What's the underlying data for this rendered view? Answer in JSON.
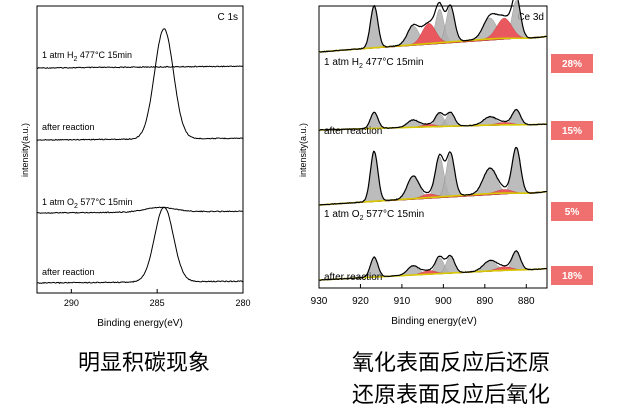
{
  "chart_data": [
    {
      "type": "line",
      "panel_label": "C 1s",
      "xlabel": "Binding energy(eV)",
      "ylabel": "intensity(a.u.)",
      "xlim": [
        292,
        280
      ],
      "xticks": [
        290,
        285,
        280
      ],
      "series": [
        {
          "label": "1 atm H₂ 477°C 15min",
          "peak": null
        },
        {
          "label": "after reaction",
          "peak": {
            "center": 284.6,
            "height": 1.0
          }
        },
        {
          "label": "1 atm O₂ 577°C 15min",
          "peak": {
            "center": 284.8,
            "height": 0.06
          }
        },
        {
          "label": "after reaction",
          "peak": {
            "center": 284.6,
            "height": 0.85
          }
        }
      ]
    },
    {
      "type": "line",
      "panel_label": "Ce 3d",
      "xlabel": "Binding energy(eV)",
      "ylabel": "intensity(a.u.)",
      "xlim": [
        930,
        875
      ],
      "xticks": [
        930,
        920,
        910,
        900,
        890,
        880
      ],
      "series": [
        {
          "label": "1 atm H₂ 477°C 15min",
          "badge": "28%"
        },
        {
          "label": "after reaction",
          "badge": "15%"
        },
        {
          "label": "1 atm O₂ 577°C 15min",
          "badge": "5%"
        },
        {
          "label": "after reaction",
          "badge": "18%"
        }
      ],
      "colors": {
        "ce4_fill": "#b0b0b0",
        "ce3_fill": "#e8585e",
        "badge": "#f07070",
        "fit": "#d8c800"
      }
    }
  ],
  "captions": {
    "left": "明显积碳现象",
    "right_line1": "氧化表面反应后还原",
    "right_line2": "还原表面反应后氧化"
  }
}
